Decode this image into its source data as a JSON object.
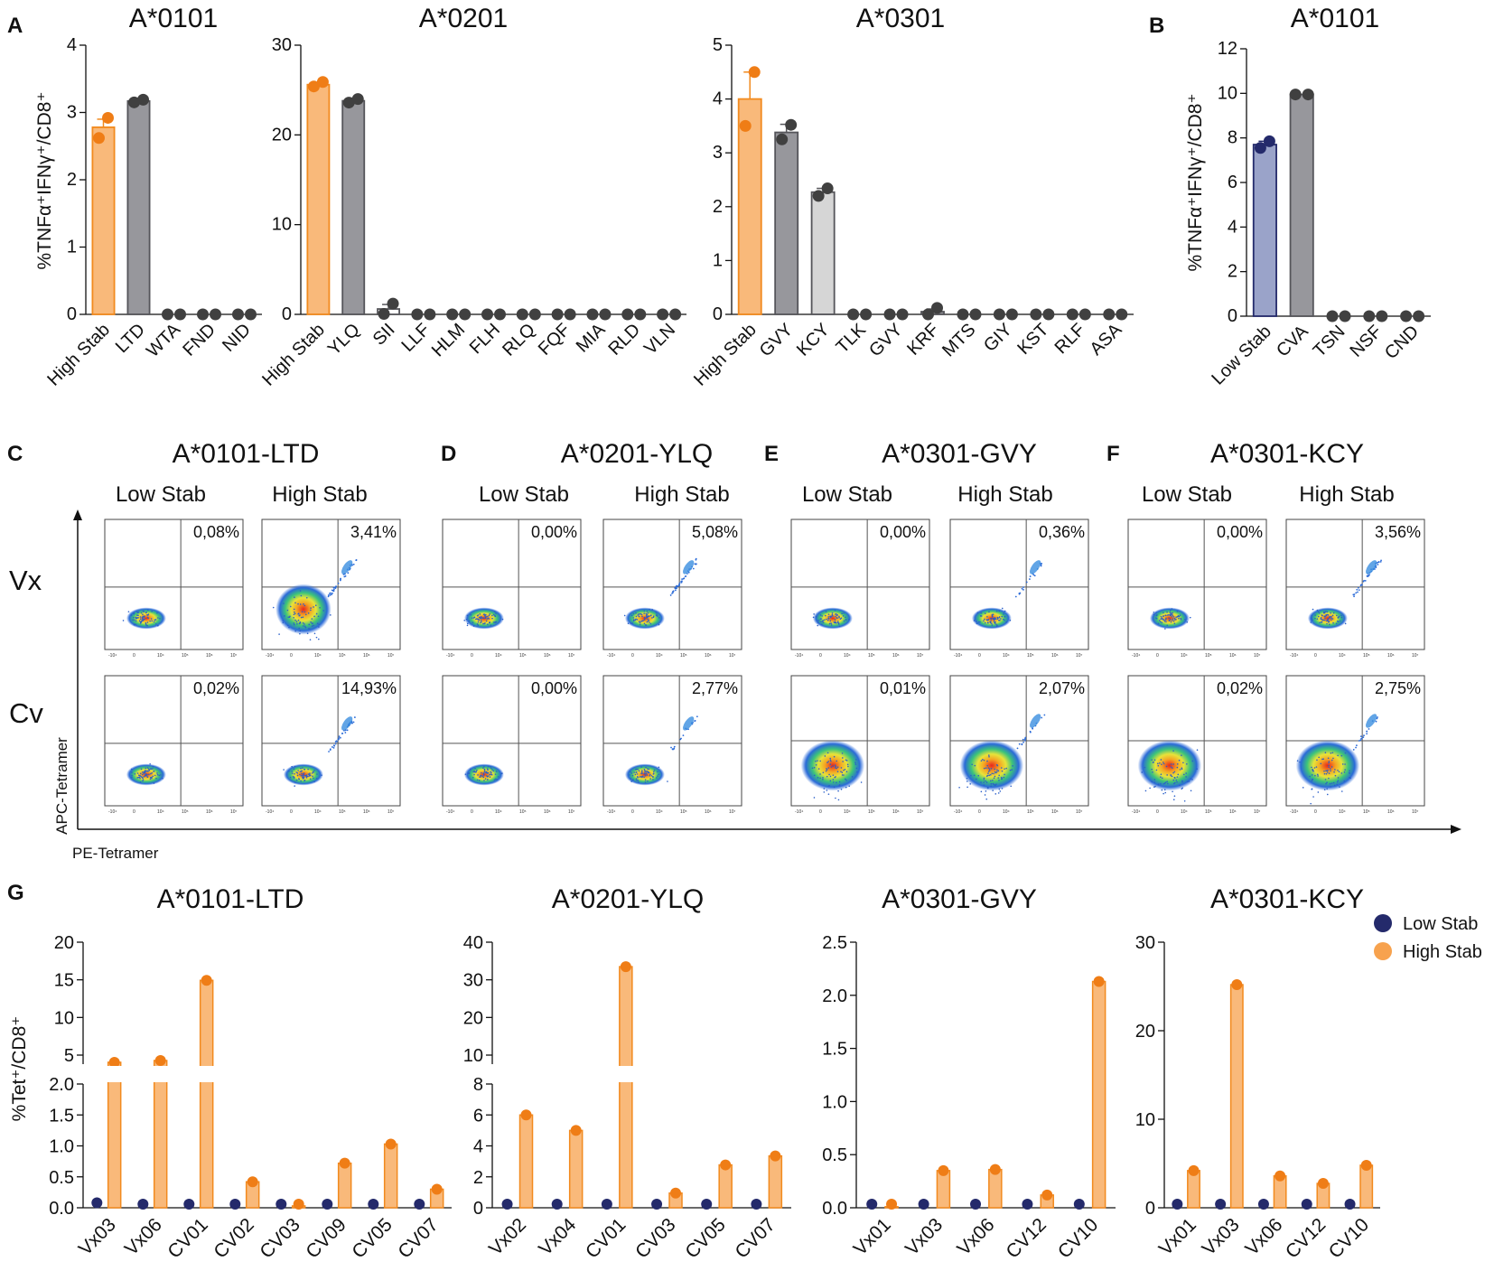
{
  "colors": {
    "orange_fill": "#f9b97a",
    "orange_stroke": "#f28a1e",
    "orange_dot": "#ef7d16",
    "gray_fill": "#97979c",
    "gray_stroke": "#55555a",
    "lightgray_fill": "#d6d6d6",
    "white_fill": "#ffffff",
    "navy_fill": "#9aa3c9",
    "navy_dot": "#242a6b",
    "dark_dot": "#404040"
  },
  "labels": {
    "panel_A": "A",
    "panel_B": "B",
    "panel_C": "C",
    "panel_D": "D",
    "panel_E": "E",
    "panel_F": "F",
    "panel_G": "G",
    "y_label_AB": "%TNFα⁺IFNγ⁺/CD8⁺",
    "y_label_G": "%Tet⁺/CD8⁺",
    "x_axis_flow": "PE-Tetramer",
    "y_axis_flow": "APC-Tetramer",
    "row_vx": "Vx",
    "row_cv": "Cv",
    "low_stab": "Low Stab",
    "high_stab": "High Stab"
  },
  "chart_data": [
    {
      "id": "A1",
      "type": "bar",
      "title": "A*0101",
      "ylabel": "%TNFα⁺IFNγ⁺/CD8⁺",
      "ylim": [
        0,
        4
      ],
      "yticks": [
        0,
        1,
        2,
        3,
        4
      ],
      "categories": [
        "High Stab",
        "LTD",
        "WTA",
        "FND",
        "NID"
      ],
      "values": [
        2.78,
        3.17,
        0,
        0,
        0
      ],
      "errors": [
        0.12,
        0.03,
        0,
        0,
        0
      ],
      "points": [
        [
          2.62,
          2.92
        ],
        [
          3.15,
          3.19
        ],
        [
          0,
          0
        ],
        [
          0,
          0
        ],
        [
          0,
          0
        ]
      ],
      "styles": [
        "orange",
        "gray",
        "gray",
        "gray",
        "gray"
      ]
    },
    {
      "id": "A2",
      "type": "bar",
      "title": "A*0201",
      "ylim": [
        0,
        30
      ],
      "yticks": [
        0,
        10,
        20,
        30
      ],
      "categories": [
        "High Stab",
        "YLQ",
        "SII",
        "LLF",
        "HLM",
        "FLH",
        "RLQ",
        "FQF",
        "MIA",
        "RLD",
        "VLN"
      ],
      "values": [
        25.6,
        23.8,
        0.6,
        0,
        0,
        0,
        0,
        0,
        0,
        0,
        0
      ],
      "errors": [
        0.25,
        0.3,
        0.5,
        0,
        0,
        0,
        0,
        0,
        0,
        0,
        0
      ],
      "points": [
        [
          25.4,
          25.9
        ],
        [
          23.6,
          24.0
        ],
        [
          0.05,
          1.2
        ],
        [
          0,
          0
        ],
        [
          0,
          0
        ],
        [
          0,
          0
        ],
        [
          0,
          0
        ],
        [
          0,
          0
        ],
        [
          0,
          0
        ],
        [
          0,
          0
        ],
        [
          0,
          0
        ]
      ],
      "styles": [
        "orange",
        "gray",
        "white",
        "gray",
        "gray",
        "gray",
        "gray",
        "gray",
        "gray",
        "gray",
        "gray"
      ]
    },
    {
      "id": "A3",
      "type": "bar",
      "title": "A*0301",
      "ylim": [
        0,
        5
      ],
      "yticks": [
        0,
        1,
        2,
        3,
        4,
        5
      ],
      "categories": [
        "High Stab",
        "GVY",
        "KCY",
        "TLK",
        "GVY",
        "KRF",
        "MTS",
        "GIY",
        "KST",
        "RLF",
        "ASA"
      ],
      "values": [
        4.0,
        3.38,
        2.27,
        0,
        0,
        0.05,
        0,
        0,
        0,
        0,
        0
      ],
      "errors": [
        0.5,
        0.15,
        0.07,
        0,
        0,
        0.05,
        0,
        0,
        0,
        0,
        0
      ],
      "points": [
        [
          3.5,
          4.5
        ],
        [
          3.25,
          3.52
        ],
        [
          2.2,
          2.34
        ],
        [
          0,
          0
        ],
        [
          0,
          0
        ],
        [
          0,
          0.12
        ],
        [
          0,
          0
        ],
        [
          0,
          0
        ],
        [
          0,
          0
        ],
        [
          0,
          0
        ],
        [
          0,
          0
        ]
      ],
      "styles": [
        "orange",
        "gray",
        "lightgray",
        "gray",
        "gray",
        "gray",
        "gray",
        "gray",
        "gray",
        "gray",
        "gray"
      ]
    },
    {
      "id": "B1",
      "type": "bar",
      "title": "A*0101",
      "ylabel": "%TNFα⁺IFNγ⁺/CD8⁺",
      "ylim": [
        0,
        12
      ],
      "yticks": [
        0,
        2,
        4,
        6,
        8,
        10,
        12
      ],
      "categories": [
        "Low Stab",
        "CVA",
        "TSN",
        "NSF",
        "CND"
      ],
      "values": [
        7.7,
        9.95,
        0,
        0,
        0
      ],
      "errors": [
        0.15,
        0,
        0,
        0,
        0
      ],
      "points": [
        [
          7.55,
          7.85
        ],
        [
          9.95,
          9.95
        ],
        [
          0,
          0
        ],
        [
          0,
          0
        ],
        [
          0,
          0
        ]
      ],
      "styles": [
        "navy",
        "gray",
        "gray",
        "gray",
        "gray"
      ]
    },
    {
      "id": "G1",
      "type": "bar",
      "title": "A*0101-LTD",
      "ylabel": "%Tet⁺/CD8⁺",
      "broken_axis": true,
      "lower_ticks": [
        "0.0",
        "0.5",
        "1.0",
        "1.5",
        "2.0"
      ],
      "upper_ticks": [
        "5",
        "10",
        "15",
        "20"
      ],
      "categories": [
        "Vx03",
        "Vx06",
        "CV01",
        "CV02",
        "CV03",
        "CV09",
        "CV05",
        "CV07"
      ],
      "series": [
        {
          "name": "Low Stab",
          "values": [
            0.08,
            0.02,
            0.03,
            0.02,
            0.01,
            0.02,
            0.03,
            0.02
          ]
        },
        {
          "name": "High Stab",
          "values": [
            3.41,
            3.8,
            14.93,
            0.42,
            0.03,
            0.72,
            1.03,
            0.3
          ]
        }
      ]
    },
    {
      "id": "G2",
      "type": "bar",
      "title": "A*0201-YLQ",
      "broken_axis": true,
      "lower_ticks": [
        "0",
        "2",
        "4",
        "6",
        "8"
      ],
      "upper_ticks": [
        "10",
        "20",
        "30",
        "40"
      ],
      "categories": [
        "Vx02",
        "Vx04",
        "CV01",
        "CV03",
        "CV05",
        "CV07"
      ],
      "series": [
        {
          "name": "Low Stab",
          "values": [
            0.02,
            0.02,
            0.02,
            0.05,
            0.02,
            0.02
          ]
        },
        {
          "name": "High Stab",
          "values": [
            6.0,
            5.0,
            33.5,
            0.95,
            2.77,
            3.35
          ]
        }
      ]
    },
    {
      "id": "G3",
      "type": "bar",
      "title": "A*0301-GVY",
      "ylim": [
        0,
        2.5
      ],
      "ytick_labels": [
        "0.0",
        "0.5",
        "1.0",
        "1.5",
        "2.0",
        "2.5"
      ],
      "categories": [
        "Vx01",
        "Vx03",
        "Vx06",
        "CV12",
        "CV10"
      ],
      "series": [
        {
          "name": "Low Stab",
          "values": [
            0.03,
            0.02,
            0.01,
            0.02,
            0.03
          ]
        },
        {
          "name": "High Stab",
          "values": [
            0.01,
            0.35,
            0.36,
            0.12,
            2.13
          ]
        }
      ]
    },
    {
      "id": "G4",
      "type": "bar",
      "title": "A*0301-KCY",
      "ylim": [
        0,
        30
      ],
      "ytick_labels": [
        "0",
        "10",
        "20",
        "30"
      ],
      "categories": [
        "Vx01",
        "Vx03",
        "Vx06",
        "CV12",
        "CV10"
      ],
      "series": [
        {
          "name": "Low Stab",
          "values": [
            0.05,
            0.4,
            0.05,
            0.05,
            0.1
          ]
        },
        {
          "name": "High Stab",
          "values": [
            4.2,
            25.2,
            3.6,
            2.75,
            4.8
          ]
        }
      ],
      "legend": [
        "Low Stab",
        "High Stab"
      ]
    }
  ],
  "flow_panels": [
    {
      "letter": "C",
      "title": "A*0101-LTD",
      "pcts": {
        "vx_low": "0,08%",
        "vx_high": "3,41%",
        "cv_low": "0,02%",
        "cv_high": "14,93%"
      }
    },
    {
      "letter": "D",
      "title": "A*0201-YLQ",
      "pcts": {
        "vx_low": "0,00%",
        "vx_high": "5,08%",
        "cv_low": "0,00%",
        "cv_high": "2,77%"
      }
    },
    {
      "letter": "E",
      "title": "A*0301-GVY",
      "pcts": {
        "vx_low": "0,00%",
        "vx_high": "0,36%",
        "cv_low": "0,01%",
        "cv_high": "2,07%"
      }
    },
    {
      "letter": "F",
      "title": "A*0301-KCY",
      "pcts": {
        "vx_low": "0,00%",
        "vx_high": "3,56%",
        "cv_low": "0,02%",
        "cv_high": "2,75%"
      }
    }
  ]
}
